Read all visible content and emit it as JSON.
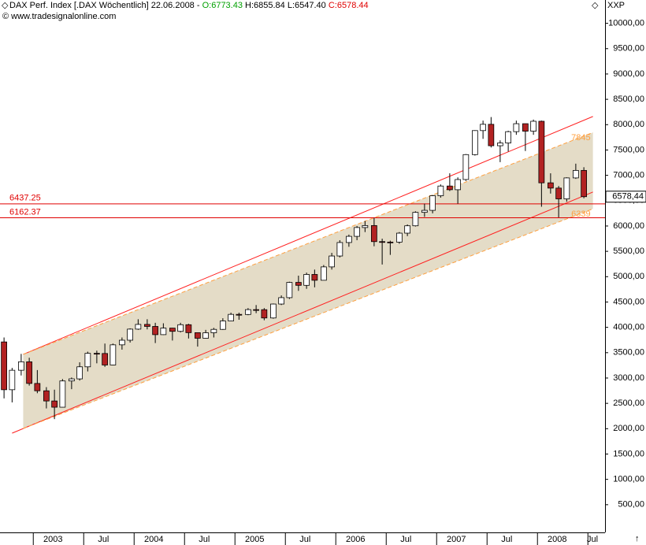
{
  "header": {
    "instrument": "DAX Perf. Index [.DAX  Wöchentlich]",
    "date": "22.06.2008 -",
    "open": "O:6773.43",
    "high": "H:6855.84",
    "low": "L:6547.40",
    "close": "C:6578.44",
    "source": "© www.tradesignalonline.com",
    "axis_name": "XXP"
  },
  "chart_data": {
    "type": "candlestick",
    "up_color": "#ffffff",
    "down_color": "#b22222",
    "x": [
      2002.71,
      2002.79,
      2002.88,
      2002.96,
      2003.04,
      2003.13,
      2003.21,
      2003.29,
      2003.38,
      2003.46,
      2003.54,
      2003.63,
      2003.71,
      2003.79,
      2003.88,
      2003.96,
      2004.04,
      2004.13,
      2004.21,
      2004.29,
      2004.38,
      2004.46,
      2004.54,
      2004.63,
      2004.71,
      2004.79,
      2004.88,
      2004.96,
      2005.04,
      2005.13,
      2005.21,
      2005.29,
      2005.38,
      2005.46,
      2005.54,
      2005.63,
      2005.71,
      2005.79,
      2005.88,
      2005.96,
      2006.04,
      2006.13,
      2006.21,
      2006.29,
      2006.38,
      2006.46,
      2006.54,
      2006.63,
      2006.71,
      2006.79,
      2006.88,
      2006.96,
      2007.04,
      2007.13,
      2007.21,
      2007.29,
      2007.38,
      2007.46,
      2007.54,
      2007.63,
      2007.71,
      2007.79,
      2007.88,
      2007.96,
      2008.04,
      2008.13,
      2008.21,
      2008.29,
      2008.38,
      2008.46
    ],
    "open": [
      3712,
      2769,
      3153,
      3320,
      2893,
      2748,
      2547,
      2424,
      2942,
      2983,
      3221,
      3487,
      3484,
      3257,
      3655,
      3746,
      3965,
      4058,
      4018,
      3856,
      3985,
      3921,
      4052,
      3895,
      3785,
      3893,
      3960,
      4126,
      4256,
      4254,
      4350,
      4349,
      4185,
      4460,
      4586,
      4887,
      4829,
      5044,
      4929,
      5193,
      5408,
      5674,
      5796,
      5970,
      6009,
      5692,
      5683,
      5682,
      5859,
      6004,
      6269,
      6309,
      6597,
      6789,
      6716,
      6917,
      7409,
      7883,
      8007,
      7584,
      7638,
      7862,
      8019,
      7871,
      8067,
      6852,
      6748,
      6535,
      6949,
      7097
    ],
    "high": [
      3800,
      3200,
      3476,
      3400,
      3157,
      2820,
      2770,
      2980,
      3010,
      3310,
      3520,
      3540,
      3680,
      3680,
      3800,
      3980,
      4160,
      4160,
      4090,
      4080,
      3990,
      4090,
      4070,
      3900,
      3950,
      3990,
      4180,
      4290,
      4290,
      4380,
      4440,
      4380,
      4470,
      4630,
      4900,
      5020,
      5080,
      5140,
      5230,
      5470,
      5720,
      5830,
      6000,
      6100,
      6160,
      5750,
      5710,
      5880,
      6030,
      6290,
      6440,
      6610,
      6820,
      7040,
      6960,
      7420,
      7890,
      8080,
      8150,
      7690,
      7880,
      8080,
      8020,
      8100,
      8080,
      7040,
      6790,
      6960,
      7230,
      7160
    ],
    "low": [
      2598,
      2519,
      3050,
      2850,
      2700,
      2400,
      2189,
      2420,
      2780,
      2950,
      3130,
      3290,
      3220,
      3250,
      3560,
      3700,
      3950,
      3960,
      3690,
      3850,
      3740,
      3900,
      3780,
      3620,
      3780,
      3800,
      3950,
      4120,
      4150,
      4240,
      4280,
      4140,
      4170,
      4440,
      4560,
      4720,
      4760,
      4790,
      4930,
      5140,
      5380,
      5590,
      5720,
      5880,
      5600,
      5240,
      5430,
      5650,
      5800,
      5990,
      6180,
      6250,
      6560,
      6690,
      6440,
      6890,
      7390,
      7720,
      7550,
      7260,
      7470,
      7800,
      7480,
      7800,
      6380,
      6640,
      6170,
      6480,
      6930,
      6547
    ],
    "close": [
      2769,
      3153,
      3320,
      2893,
      2748,
      2547,
      2424,
      2942,
      2983,
      3221,
      3487,
      3484,
      3257,
      3655,
      3746,
      3965,
      4058,
      4018,
      3856,
      3985,
      3921,
      4052,
      3895,
      3785,
      3893,
      3960,
      4126,
      4256,
      4254,
      4350,
      4349,
      4185,
      4460,
      4586,
      4887,
      4829,
      5044,
      4929,
      5193,
      5408,
      5674,
      5796,
      5970,
      6009,
      5692,
      5683,
      5682,
      5859,
      6004,
      6269,
      6309,
      6597,
      6789,
      6716,
      6917,
      7409,
      7883,
      8007,
      7584,
      7638,
      7862,
      8019,
      7871,
      8067,
      6852,
      6748,
      6535,
      6949,
      7097,
      6578.44
    ],
    "last_label": "6578,44",
    "xlim": [
      2002.67,
      2008.67
    ],
    "xticks": [
      {
        "value": 2003,
        "label": "2003"
      },
      {
        "value": 2003.5,
        "label": "Jul"
      },
      {
        "value": 2004,
        "label": "2004"
      },
      {
        "value": 2004.5,
        "label": "Jul"
      },
      {
        "value": 2005,
        "label": "2005"
      },
      {
        "value": 2005.5,
        "label": "Jul"
      },
      {
        "value": 2006,
        "label": "2006"
      },
      {
        "value": 2006.5,
        "label": "Jul"
      },
      {
        "value": 2007,
        "label": "2007"
      },
      {
        "value": 2007.5,
        "label": "Jul"
      },
      {
        "value": 2008,
        "label": "2008"
      },
      {
        "value": 2008.5,
        "label": "Jul"
      }
    ],
    "ylim": [
      0,
      10460
    ],
    "yticks": [
      {
        "value": 500,
        "label": "500,00"
      },
      {
        "value": 1000,
        "label": "1000,00"
      },
      {
        "value": 1500,
        "label": "1500,00"
      },
      {
        "value": 2000,
        "label": "2000,00"
      },
      {
        "value": 2500,
        "label": "2500,00"
      },
      {
        "value": 3000,
        "label": "3000,00"
      },
      {
        "value": 3500,
        "label": "3500,00"
      },
      {
        "value": 4000,
        "label": "4000,00"
      },
      {
        "value": 4500,
        "label": "4500,00"
      },
      {
        "value": 5000,
        "label": "5000,00"
      },
      {
        "value": 5500,
        "label": "5500,00"
      },
      {
        "value": 6000,
        "label": "6000,00"
      },
      {
        "value": 6500,
        "label": "6500,00"
      },
      {
        "value": 7000,
        "label": "7000,00"
      },
      {
        "value": 7500,
        "label": "7500,00"
      },
      {
        "value": 8000,
        "label": "8000,00"
      },
      {
        "value": 8500,
        "label": "8500,00"
      },
      {
        "value": 9000,
        "label": "9000,00"
      },
      {
        "value": 9500,
        "label": "9500,00"
      },
      {
        "value": 10000,
        "label": "10000,00"
      }
    ],
    "hlines": [
      {
        "value": 6437.25,
        "label": "6437.25",
        "color": "#e00000"
      },
      {
        "value": 6162.37,
        "label": "6162.37",
        "color": "#e00000"
      }
    ],
    "trendlines": [
      {
        "x": [
          2002.9,
          2008.55
        ],
        "y": [
          3467,
          8162
        ],
        "color": "#ff2020",
        "dashed": false
      },
      {
        "x": [
          2002.79,
          2008.55
        ],
        "y": [
          1912,
          6670
        ],
        "color": "#ff2020",
        "dashed": false
      },
      {
        "x": [
          2002.9,
          2008.55
        ],
        "y": [
          3467,
          7845
        ],
        "color": "#ffa040",
        "dashed": true,
        "label": 7845
      },
      {
        "x": [
          2002.9,
          2008.55
        ],
        "y": [
          2005,
          6339
        ],
        "color": "#ffa040",
        "dashed": true,
        "label": 6339
      }
    ],
    "channel_fill": "#ddd3b9"
  }
}
